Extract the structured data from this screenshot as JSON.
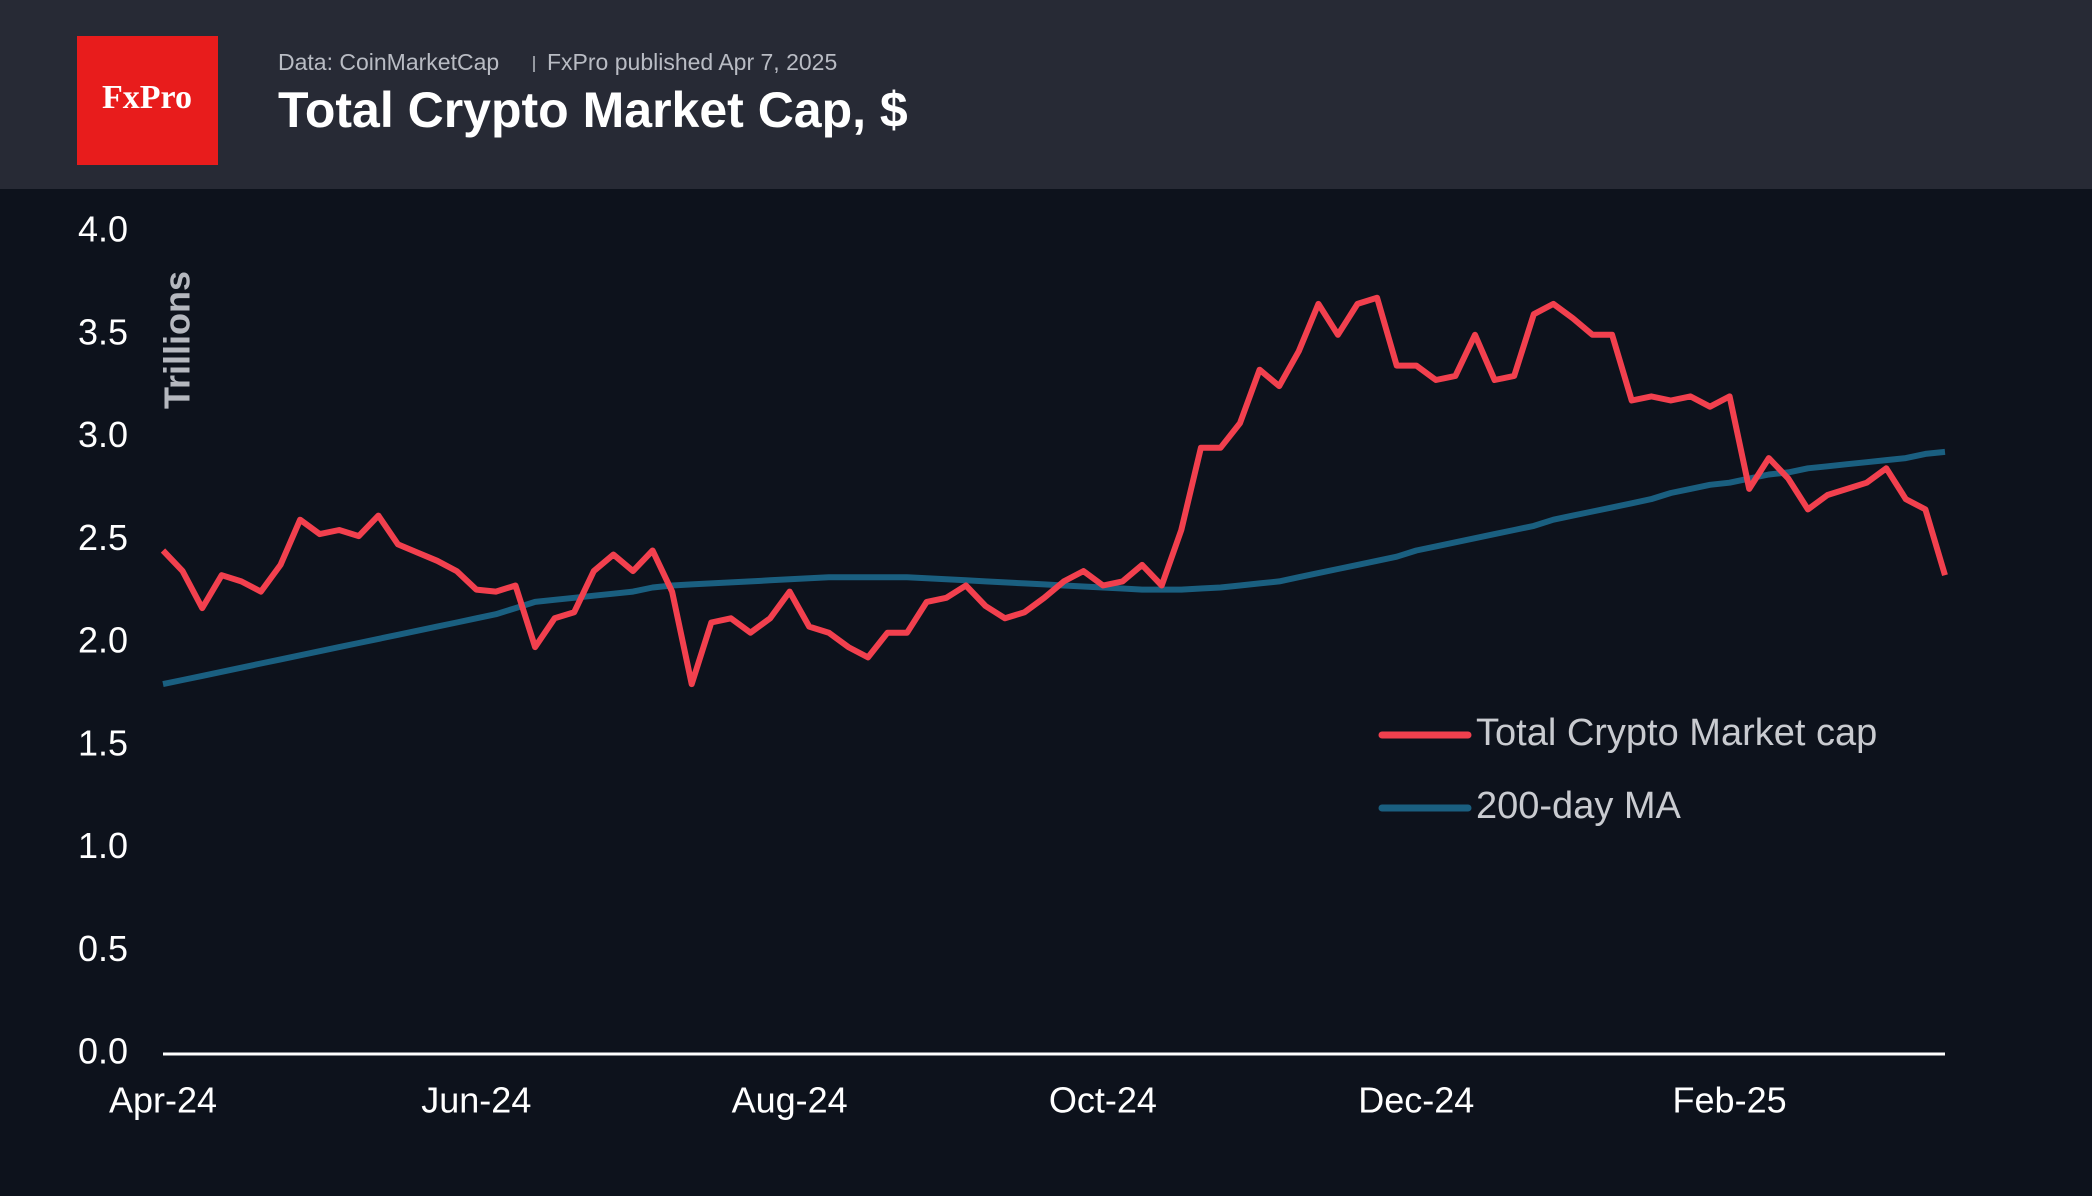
{
  "header": {
    "logo": "FxPro",
    "source": "Data: CoinMarketCap",
    "publisher": "FxPro published Apr 7, 2025"
  },
  "chart_data": {
    "type": "line",
    "title": "Total Crypto Market Cap, $",
    "y_label": "Trillions",
    "x": [
      0,
      0.125,
      0.25,
      0.375,
      0.5,
      0.625,
      0.75,
      0.875,
      1,
      1.125,
      1.25,
      1.375,
      1.5,
      1.625,
      1.75,
      1.875,
      2,
      2.125,
      2.25,
      2.375,
      2.5,
      2.625,
      2.75,
      2.875,
      3,
      3.125,
      3.25,
      3.375,
      3.5,
      3.625,
      3.75,
      3.875,
      4,
      4.125,
      4.25,
      4.375,
      4.5,
      4.625,
      4.75,
      4.875,
      5,
      5.125,
      5.25,
      5.375,
      5.5,
      5.625,
      5.75,
      5.875,
      6,
      6.125,
      6.25,
      6.375,
      6.5,
      6.625,
      6.75,
      6.875,
      7,
      7.125,
      7.25,
      7.375,
      7.5,
      7.625,
      7.75,
      7.875,
      8,
      8.125,
      8.25,
      8.375,
      8.5,
      8.625,
      8.75,
      8.875,
      9,
      9.125,
      9.25,
      9.375,
      9.5,
      9.625,
      9.75,
      9.875,
      10,
      10.125,
      10.25,
      10.375,
      10.5,
      10.625,
      10.75,
      10.875,
      11,
      11.125,
      11.25,
      11.375
    ],
    "xlim": [
      0,
      11.375
    ],
    "xticks": [
      {
        "value": 0,
        "label": "Apr-24"
      },
      {
        "value": 2,
        "label": "Jun-24"
      },
      {
        "value": 4,
        "label": "Aug-24"
      },
      {
        "value": 6,
        "label": "Oct-24"
      },
      {
        "value": 8,
        "label": "Dec-24"
      },
      {
        "value": 10,
        "label": "Feb-25"
      }
    ],
    "ylim": [
      0,
      4
    ],
    "yticks": [
      {
        "value": 0,
        "label": "0.0"
      },
      {
        "value": 0.5,
        "label": "0.5"
      },
      {
        "value": 1,
        "label": "1.0"
      },
      {
        "value": 1.5,
        "label": "1.5"
      },
      {
        "value": 2,
        "label": "2.0"
      },
      {
        "value": 2.5,
        "label": "2.5"
      },
      {
        "value": 3,
        "label": "3.0"
      },
      {
        "value": 3.5,
        "label": "3.5"
      },
      {
        "value": 4,
        "label": "4.0"
      }
    ],
    "legend_position": "right",
    "series": [
      {
        "name": "Total Crypto Market cap",
        "color": "#f2404e",
        "values": [
          2.45,
          2.35,
          2.17,
          2.33,
          2.3,
          2.25,
          2.38,
          2.6,
          2.53,
          2.55,
          2.52,
          2.62,
          2.48,
          2.44,
          2.4,
          2.35,
          2.26,
          2.25,
          2.28,
          1.98,
          2.12,
          2.15,
          2.35,
          2.43,
          2.35,
          2.45,
          2.25,
          1.8,
          2.1,
          2.12,
          2.05,
          2.12,
          2.25,
          2.08,
          2.05,
          1.98,
          1.93,
          2.05,
          2.05,
          2.2,
          2.22,
          2.28,
          2.18,
          2.12,
          2.15,
          2.22,
          2.3,
          2.35,
          2.28,
          2.3,
          2.38,
          2.28,
          2.55,
          2.95,
          2.95,
          3.07,
          3.33,
          3.25,
          3.42,
          3.65,
          3.5,
          3.65,
          3.68,
          3.35,
          3.35,
          3.28,
          3.3,
          3.5,
          3.28,
          3.3,
          3.6,
          3.65,
          3.58,
          3.5,
          3.5,
          3.18,
          3.2,
          3.18,
          3.2,
          3.15,
          3.2,
          2.75,
          2.9,
          2.8,
          2.65,
          2.72,
          2.75,
          2.78,
          2.85,
          2.7,
          2.65,
          2.33
        ]
      },
      {
        "name": "200-day MA",
        "color": "#1a5f80",
        "values": [
          1.8,
          1.82,
          1.84,
          1.86,
          1.88,
          1.9,
          1.92,
          1.94,
          1.96,
          1.98,
          2,
          2.02,
          2.04,
          2.06,
          2.08,
          2.1,
          2.12,
          2.14,
          2.17,
          2.2,
          2.21,
          2.22,
          2.23,
          2.24,
          2.25,
          2.27,
          2.28,
          2.285,
          2.29,
          2.295,
          2.3,
          2.305,
          2.31,
          2.315,
          2.32,
          2.32,
          2.32,
          2.32,
          2.32,
          2.315,
          2.31,
          2.305,
          2.3,
          2.295,
          2.29,
          2.285,
          2.28,
          2.275,
          2.27,
          2.265,
          2.26,
          2.26,
          2.26,
          2.265,
          2.27,
          2.28,
          2.29,
          2.3,
          2.32,
          2.34,
          2.36,
          2.38,
          2.4,
          2.42,
          2.45,
          2.47,
          2.49,
          2.51,
          2.53,
          2.55,
          2.57,
          2.6,
          2.62,
          2.64,
          2.66,
          2.68,
          2.7,
          2.73,
          2.75,
          2.77,
          2.78,
          2.8,
          2.82,
          2.83,
          2.85,
          2.86,
          2.87,
          2.88,
          2.89,
          2.9,
          2.92,
          2.93
        ]
      }
    ]
  }
}
